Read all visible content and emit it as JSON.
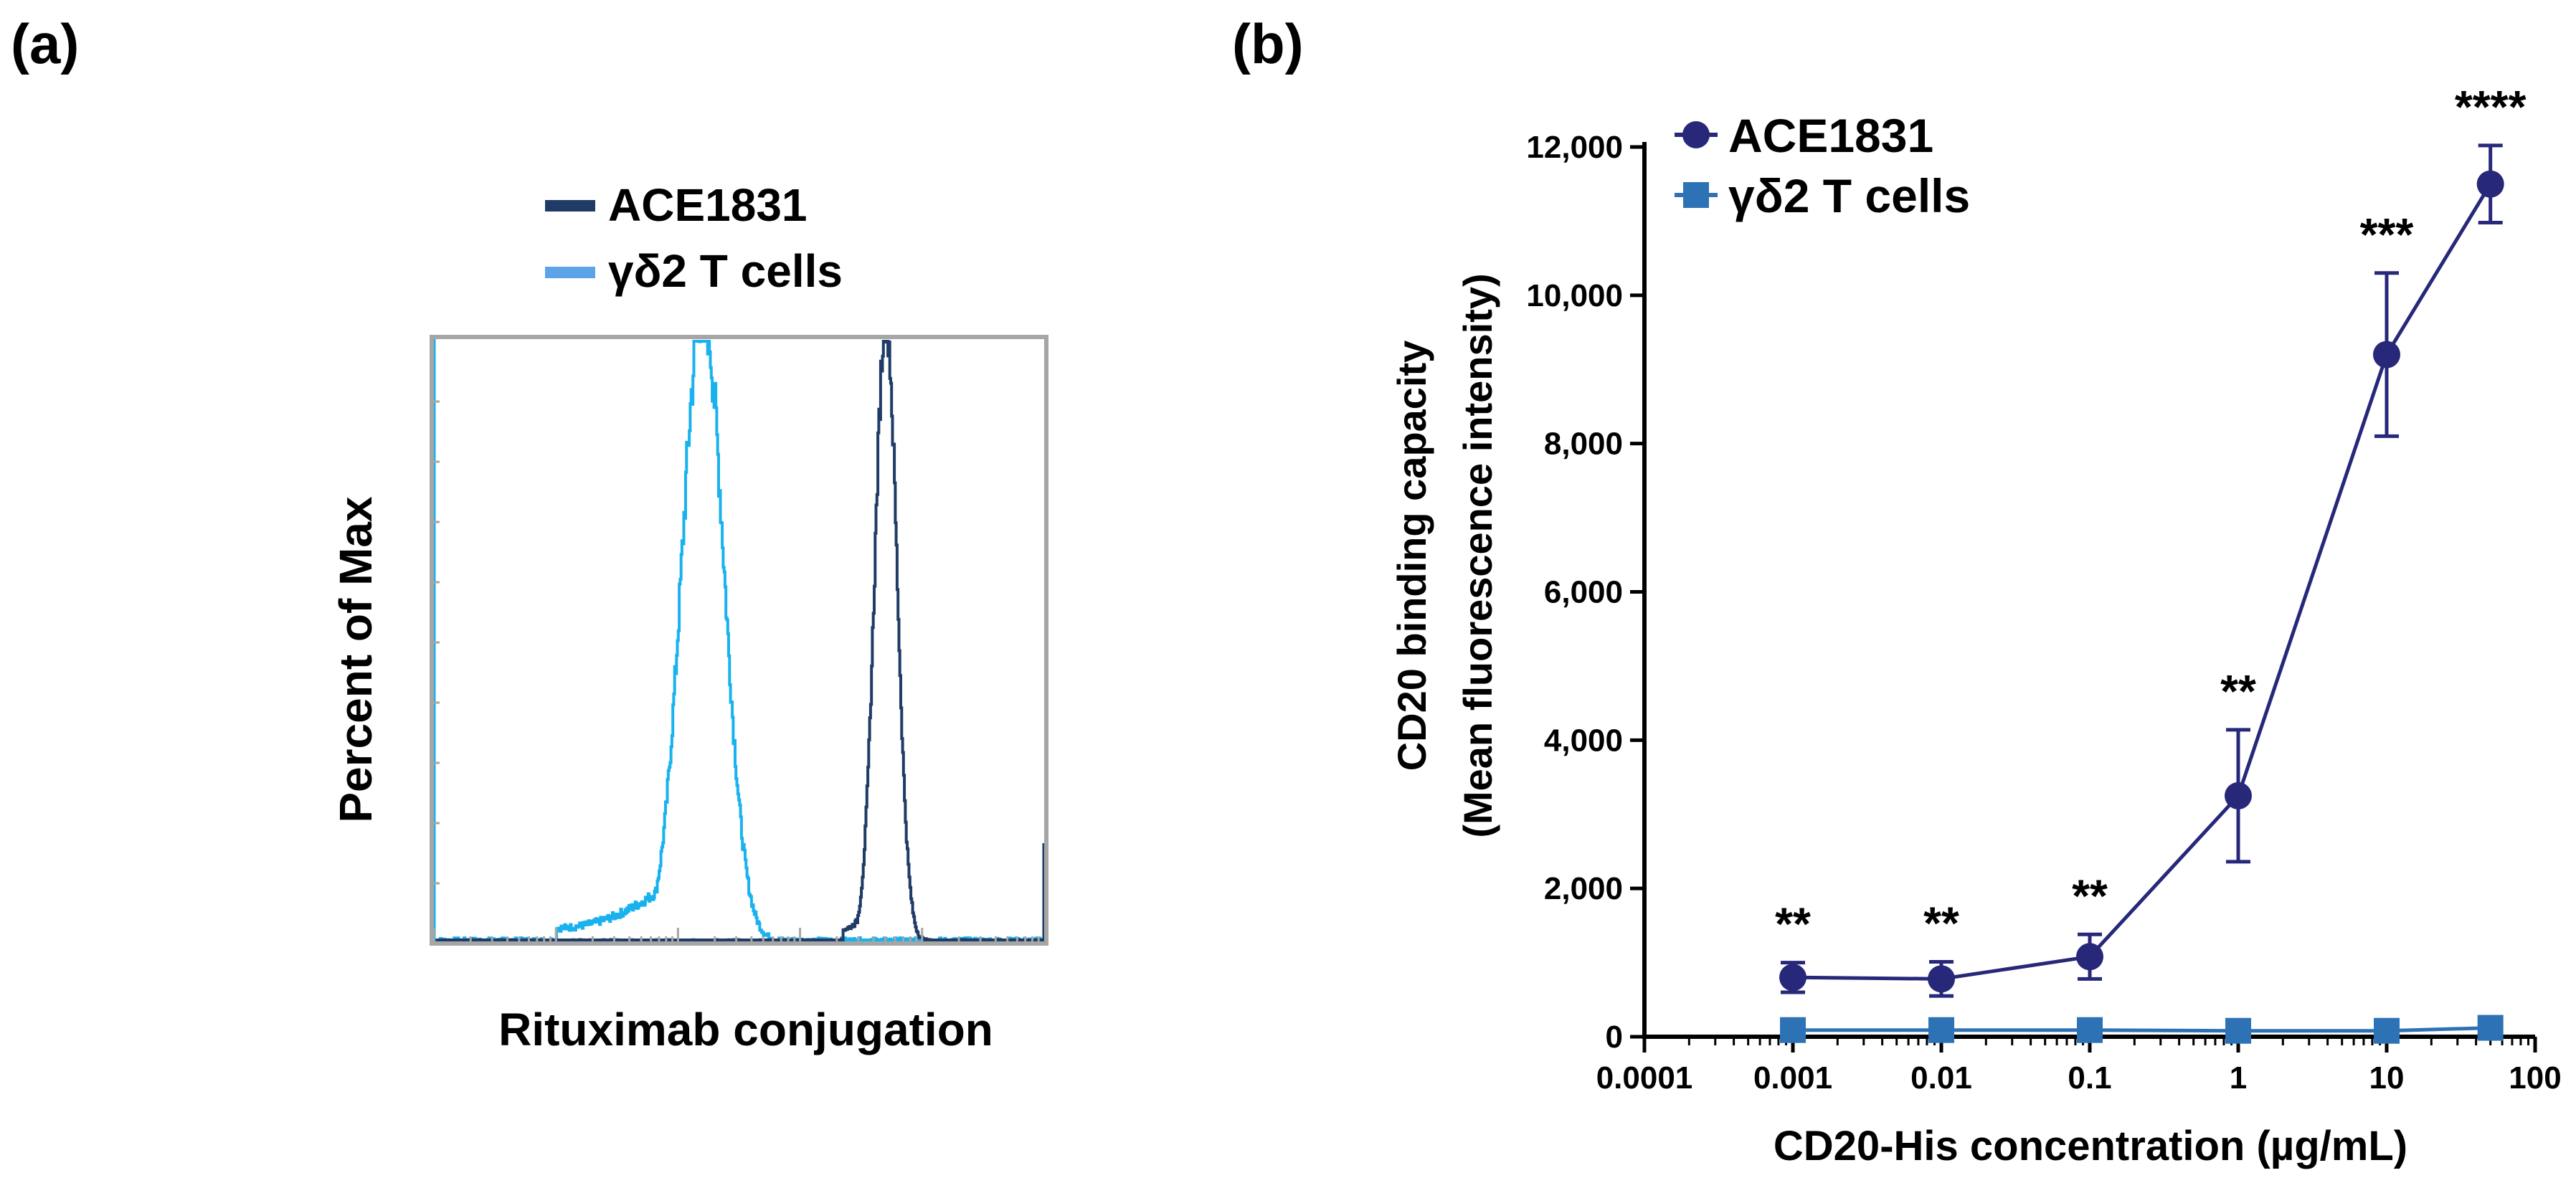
{
  "panel_a": {
    "label": "(a)",
    "chart_data": {
      "type": "histogram",
      "title": "",
      "xlabel": "Rituximab conjugation",
      "ylabel": "Percent of Max",
      "xscale": "log",
      "x_range_log10": [
        0,
        5
      ],
      "y_range_percent": [
        0,
        100
      ],
      "legend_position": "top",
      "series": [
        {
          "name": "ACE1831",
          "color": "#1f3b66",
          "peak_log10": 3.7,
          "spread_log10": 0.09,
          "peak_percent": 100,
          "lower_tail_log10": 3.35
        },
        {
          "name": "γδ2 T cells",
          "color": "#19b2ee",
          "peak_log10": 2.2,
          "spread_log10": 0.17,
          "peak_percent": 100,
          "lower_tail_log10": 1.0
        }
      ]
    }
  },
  "panel_b": {
    "label": "(b)",
    "chart_data": {
      "type": "line",
      "title": "",
      "xlabel": "CD20-His concentration (µg/mL)",
      "ylabel_line1": "CD20 binding capacity",
      "ylabel_line2": "(Mean fluorescence intensity)",
      "xscale": "log",
      "xlim": [
        0.0001,
        100
      ],
      "ylim": [
        0,
        12000
      ],
      "x_ticks": [
        0.0001,
        0.001,
        0.01,
        0.1,
        1,
        10,
        100
      ],
      "x_tick_labels": [
        "0.0001",
        "0.001",
        "0.01",
        "0.1",
        "1",
        "10",
        "100"
      ],
      "y_ticks": [
        0,
        2000,
        4000,
        6000,
        8000,
        10000,
        12000
      ],
      "y_tick_labels": [
        "0",
        "2,000",
        "4,000",
        "6,000",
        "8,000",
        "10,000",
        "12,000"
      ],
      "legend_position": "top-left",
      "x": [
        0.001,
        0.01,
        0.1,
        1,
        10,
        50
      ],
      "series": [
        {
          "name": "ACE1831",
          "marker": "circle",
          "color": "#27287a",
          "values": [
            800,
            780,
            1080,
            3250,
            9200,
            11500
          ],
          "errors": [
            200,
            230,
            300,
            890,
            1100,
            520
          ]
        },
        {
          "name": "γδ2 T cells",
          "marker": "square",
          "color": "#2e72b6",
          "values": [
            90,
            90,
            90,
            80,
            80,
            120
          ],
          "errors": [
            30,
            30,
            30,
            30,
            30,
            40
          ]
        }
      ],
      "significance": [
        "**",
        "**",
        "**",
        "**",
        "***",
        "****"
      ]
    }
  }
}
